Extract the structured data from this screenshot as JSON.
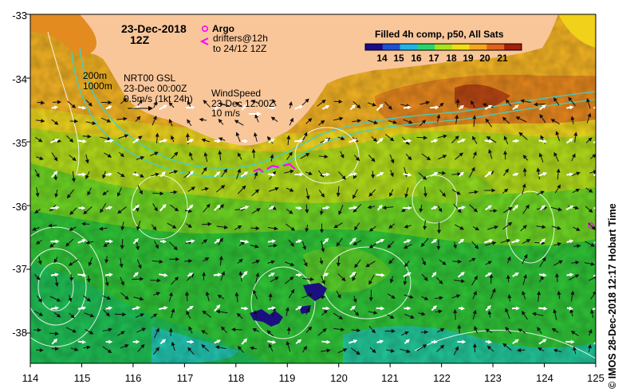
{
  "map": {
    "date": "23-Dec-2018",
    "time": "12Z",
    "argo_label": "Argo",
    "drifters_line1": "drifters@12h",
    "drifters_line2": "to 24/12 12Z",
    "contours_line1": "200m",
    "contours_line2": "1000m",
    "current_line1": "NRT00 GSL",
    "current_line2": "23-Dec 00:00Z",
    "current_line3": "0.5m/s (1kt 24h)",
    "wind_line1": "WindSpeed",
    "wind_line2": "23-Dec 12:00Z",
    "wind_line3": "10 m/s",
    "colorbar_title": "Filled 4h comp, p50, All Sats",
    "colorbar_ticks": [
      "14",
      "15",
      "16",
      "17",
      "18",
      "19",
      "20",
      "21"
    ],
    "credit": "©  IMOS 28-Dec-2018 12:17 Hobart Time",
    "lat_labels": [
      "-33",
      "-34",
      "-35",
      "-36",
      "-37",
      "-38"
    ],
    "lon_labels": [
      "114",
      "115",
      "116",
      "117",
      "118",
      "119",
      "120",
      "121",
      "122",
      "123",
      "124",
      "125"
    ],
    "extent": {
      "lon": [
        114,
        125
      ],
      "lat": [
        -38.5,
        -33
      ]
    },
    "colors": {
      "land": "#f9c69a",
      "cloud": "#1c1080",
      "argo": "#ff00ff",
      "shelf_contour": "#40d0c8",
      "colorbar": [
        "#1a0a8c",
        "#1e4fd8",
        "#1fb4e8",
        "#27d66a",
        "#a8e21a",
        "#f1de14",
        "#f4a61c",
        "#e2621b",
        "#a61e0c"
      ]
    }
  }
}
